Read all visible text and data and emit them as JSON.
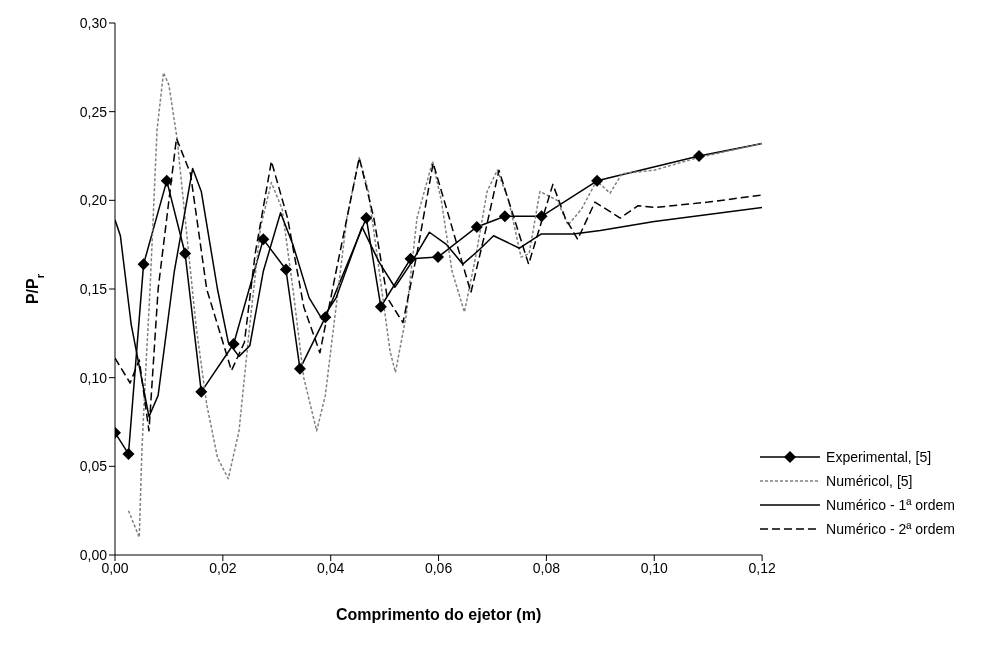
{
  "chart_data": {
    "type": "line",
    "xlabel": "Comprimento do ejetor (m)",
    "ylabel": "P/P$_{r}$",
    "xlim": [
      0,
      0.12
    ],
    "ylim": [
      0,
      0.3
    ],
    "xticks": [
      {
        "value": 0,
        "label": "0,00"
      },
      {
        "value": 0.02,
        "label": "0,02"
      },
      {
        "value": 0.04,
        "label": "0,04"
      },
      {
        "value": 0.06,
        "label": "0,06"
      },
      {
        "value": 0.08,
        "label": "0,08"
      },
      {
        "value": 0.1,
        "label": "0,10"
      },
      {
        "value": 0.12,
        "label": "0,12"
      }
    ],
    "yticks": [
      {
        "value": 0,
        "label": "0,00"
      },
      {
        "value": 0.05,
        "label": "0,05"
      },
      {
        "value": 0.1,
        "label": "0,10"
      },
      {
        "value": 0.15,
        "label": "0,15"
      },
      {
        "value": 0.2,
        "label": "0,20"
      },
      {
        "value": 0.25,
        "label": "0,25"
      },
      {
        "value": 0.3,
        "label": "0,30"
      }
    ],
    "legend": "bottom right",
    "series": [
      {
        "name": "Experimental, [5]",
        "color": "#000000",
        "marker": "diamond",
        "line_style": "solid",
        "x": [
          0.0,
          0.0025,
          0.0053,
          0.0096,
          0.013,
          0.016,
          0.022,
          0.0275,
          0.0317,
          0.0343,
          0.039,
          0.0466,
          0.0493,
          0.0548,
          0.0599,
          0.0671,
          0.0723,
          0.0791,
          0.0894,
          0.1083
        ],
        "values": [
          0.069,
          0.057,
          0.164,
          0.211,
          0.17,
          0.092,
          0.119,
          0.178,
          0.161,
          0.105,
          0.134,
          0.19,
          0.14,
          0.167,
          0.168,
          0.185,
          0.191,
          0.191,
          0.211,
          0.225
        ]
      },
      {
        "color": "#000000",
        "marker": "none",
        "line_style": "solid",
        "x": [
          0.1083,
          0.12
        ],
        "values": [
          0.225,
          0.232
        ]
      },
      {
        "name": "Numéricol, [5]",
        "color": "#808080",
        "marker": "none",
        "line_style": "dotted",
        "x": [
          0.0025,
          0.0045,
          0.005,
          0.0058,
          0.0065,
          0.0078,
          0.009,
          0.01,
          0.0115,
          0.013,
          0.015,
          0.017,
          0.019,
          0.021,
          0.023,
          0.025,
          0.027,
          0.029,
          0.031,
          0.033,
          0.035,
          0.0374,
          0.039,
          0.041,
          0.043,
          0.0453,
          0.047,
          0.049,
          0.051,
          0.052,
          0.054,
          0.056,
          0.0589,
          0.0605,
          0.0625,
          0.0648,
          0.067,
          0.069,
          0.0709,
          0.073,
          0.0753,
          0.0768,
          0.0788,
          0.082,
          0.084,
          0.0865,
          0.0893,
          0.0918,
          0.094,
          0.1,
          0.108,
          0.12
        ],
        "values": [
          0.025,
          0.01,
          0.06,
          0.11,
          0.15,
          0.24,
          0.272,
          0.265,
          0.235,
          0.19,
          0.13,
          0.085,
          0.055,
          0.043,
          0.07,
          0.13,
          0.185,
          0.21,
          0.195,
          0.15,
          0.1,
          0.07,
          0.09,
          0.14,
          0.19,
          0.224,
          0.205,
          0.16,
          0.115,
          0.103,
          0.135,
          0.19,
          0.222,
          0.2,
          0.16,
          0.137,
          0.17,
          0.205,
          0.217,
          0.2,
          0.168,
          0.17,
          0.205,
          0.2,
          0.186,
          0.195,
          0.211,
          0.204,
          0.215,
          0.217,
          0.224,
          0.232
        ]
      },
      {
        "name": "Numérico - 1ª ordem",
        "color": "#000000",
        "marker": "none",
        "line_style": "solid",
        "x": [
          0,
          0.001,
          0.003,
          0.0063,
          0.008,
          0.011,
          0.0144,
          0.016,
          0.019,
          0.021,
          0.023,
          0.025,
          0.0275,
          0.0307,
          0.033,
          0.036,
          0.0384,
          0.041,
          0.0458,
          0.049,
          0.0519,
          0.055,
          0.0583,
          0.0615,
          0.0645,
          0.0675,
          0.0702,
          0.075,
          0.079,
          0.085,
          0.09,
          0.1,
          0.11,
          0.12
        ],
        "values": [
          0.189,
          0.18,
          0.13,
          0.078,
          0.09,
          0.16,
          0.218,
          0.205,
          0.15,
          0.12,
          0.112,
          0.118,
          0.16,
          0.193,
          0.175,
          0.145,
          0.133,
          0.145,
          0.185,
          0.165,
          0.151,
          0.165,
          0.182,
          0.175,
          0.164,
          0.172,
          0.18,
          0.173,
          0.181,
          0.181,
          0.183,
          0.188,
          0.192,
          0.196
        ]
      },
      {
        "name": "Numérico - 2ª ordem",
        "color": "#000000",
        "marker": "none",
        "line_style": "dashed",
        "x": [
          0,
          0.0028,
          0.0045,
          0.0063,
          0.008,
          0.0114,
          0.014,
          0.017,
          0.0216,
          0.024,
          0.026,
          0.029,
          0.032,
          0.035,
          0.038,
          0.041,
          0.0453,
          0.048,
          0.0505,
          0.0534,
          0.056,
          0.059,
          0.062,
          0.066,
          0.0685,
          0.0712,
          0.074,
          0.0767,
          0.0812,
          0.0835,
          0.0858,
          0.089,
          0.0937,
          0.097,
          0.1002,
          0.11,
          0.12
        ],
        "values": [
          0.111,
          0.097,
          0.11,
          0.07,
          0.15,
          0.235,
          0.215,
          0.15,
          0.104,
          0.12,
          0.17,
          0.222,
          0.19,
          0.14,
          0.114,
          0.16,
          0.224,
          0.19,
          0.145,
          0.131,
          0.17,
          0.221,
          0.19,
          0.148,
          0.18,
          0.217,
          0.19,
          0.164,
          0.209,
          0.19,
          0.178,
          0.199,
          0.19,
          0.197,
          0.196,
          0.199,
          0.203
        ]
      }
    ]
  }
}
